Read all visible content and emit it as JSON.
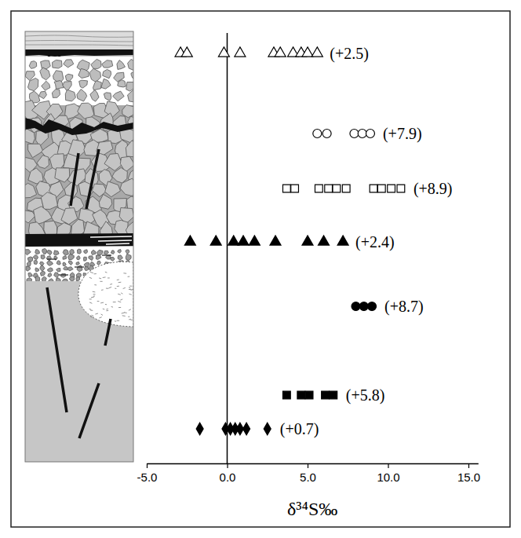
{
  "chart_data": {
    "type": "dot",
    "x_label": "δ³⁴S‰",
    "xlim": [
      -5,
      15.6
    ],
    "xticks": [
      {
        "value": -5,
        "label": "-5.0"
      },
      {
        "value": 0,
        "label": "0.0"
      },
      {
        "value": 5,
        "label": "5.0"
      },
      {
        "value": 10,
        "label": "10.0"
      },
      {
        "value": 15,
        "label": "15.0"
      }
    ],
    "reference_x": 0,
    "grid": false,
    "tick_labels": "x",
    "series": [
      {
        "marker": "open-triangle",
        "color": "#000000",
        "values": [
          -2.9,
          -2.5,
          -0.2,
          0.8,
          2.9,
          3.3,
          4.1,
          4.6,
          5.0,
          5.6
        ],
        "annotation": "(+2.5)"
      },
      {
        "marker": "open-circle",
        "color": "#000000",
        "values": [
          5.6,
          6.2,
          7.9,
          8.4,
          8.9
        ],
        "annotation": "(+7.9)"
      },
      {
        "marker": "open-square",
        "color": "#000000",
        "values": [
          3.7,
          4.2,
          5.7,
          6.3,
          6.8,
          7.4,
          9.1,
          9.6,
          10.2,
          10.8
        ],
        "annotation": "(+8.9)"
      },
      {
        "marker": "triangle",
        "color": "#000000",
        "values": [
          -2.3,
          -0.7,
          0.4,
          1.0,
          1.7,
          3.0,
          5.0,
          6.0,
          7.2
        ],
        "annotation": "(+2.4)"
      },
      {
        "marker": "circle",
        "color": "#000000",
        "values": [
          8.0,
          8.5,
          9.0
        ],
        "annotation": "(+8.7)"
      },
      {
        "marker": "square",
        "color": "#000000",
        "values": [
          3.7,
          4.6,
          5.1,
          6.1,
          6.6
        ],
        "annotation": "(+5.8)"
      },
      {
        "marker": "diamond",
        "color": "#000000",
        "values": [
          -1.7,
          -0.1,
          0.2,
          0.5,
          0.8,
          1.2,
          2.5
        ],
        "annotation": "(+0.7)"
      }
    ]
  }
}
